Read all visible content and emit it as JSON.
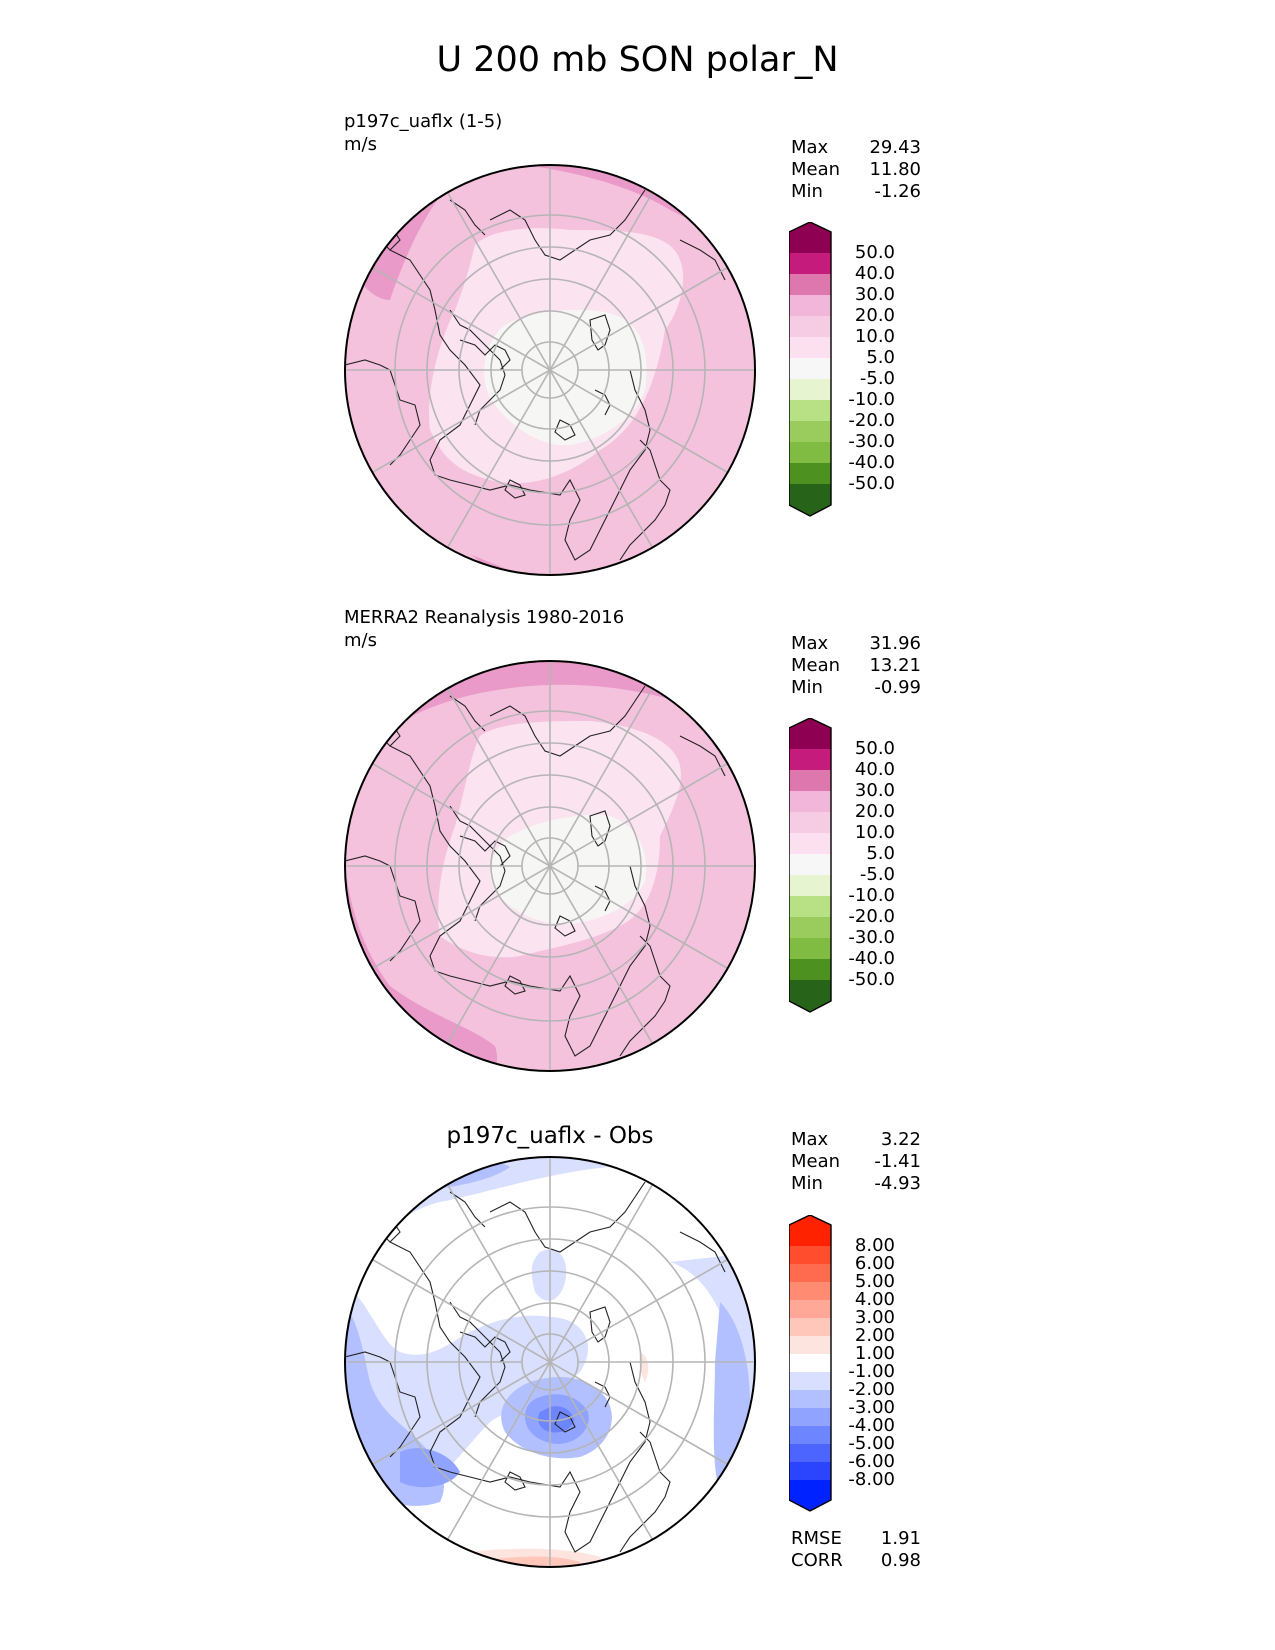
{
  "figure": {
    "title": "U 200 mb SON polar_N"
  },
  "panels": [
    {
      "name": "test",
      "title": "p197c_uaflx (1-5)",
      "units": "m/s",
      "stats": {
        "max_label": "Max",
        "max": "29.43",
        "mean_label": "Mean",
        "mean": "11.80",
        "min_label": "Min",
        "min": "-1.26"
      },
      "colorbar_ticks": [
        "50.0",
        "40.0",
        "30.0",
        "20.0",
        "10.0",
        "5.0",
        "-5.0",
        "-10.0",
        "-20.0",
        "-30.0",
        "-40.0",
        "-50.0"
      ]
    },
    {
      "name": "reference",
      "title": "MERRA2 Reanalysis 1980-2016",
      "units": "m/s",
      "stats": {
        "max_label": "Max",
        "max": "31.96",
        "mean_label": "Mean",
        "mean": "13.21",
        "min_label": "Min",
        "min": "-0.99"
      },
      "colorbar_ticks": [
        "50.0",
        "40.0",
        "30.0",
        "20.0",
        "10.0",
        "5.0",
        "-5.0",
        "-10.0",
        "-20.0",
        "-30.0",
        "-40.0",
        "-50.0"
      ]
    },
    {
      "name": "difference",
      "title": "p197c_uaflx - Obs",
      "stats": {
        "max_label": "Max",
        "max": "3.22",
        "mean_label": "Mean",
        "mean": "-1.41",
        "min_label": "Min",
        "min": "-4.93"
      },
      "colorbar_ticks": [
        "8.00",
        "6.00",
        "5.00",
        "4.00",
        "3.00",
        "2.00",
        "1.00",
        "-1.00",
        "-2.00",
        "-3.00",
        "-4.00",
        "-5.00",
        "-6.00",
        "-8.00"
      ],
      "error_stats": {
        "rmse_label": "RMSE",
        "rmse": "1.91",
        "corr_label": "CORR",
        "corr": "0.98"
      }
    }
  ],
  "colors": {
    "pink_colorbar": [
      "#8e0152",
      "#c51b7d",
      "#de77ae",
      "#f1b6da",
      "#f5cce4",
      "#fde0ef",
      "#f7f7f7",
      "#e6f5d0",
      "#b8e186",
      "#7fbc41",
      "#4d9221",
      "#276419"
    ],
    "diff_colorbar": [
      "#ff2200",
      "#ff4d2e",
      "#ff6b4f",
      "#ff8b73",
      "#ffa897",
      "#ffc6ba",
      "#fde4de",
      "#ffffff",
      "#d9e0ff",
      "#b3c0ff",
      "#8fa3ff",
      "#6d85ff",
      "#4d65ff",
      "#2b45ff",
      "#0022ff"
    ],
    "map_gridline": "#b5b5b5",
    "coastline": "#222222"
  }
}
